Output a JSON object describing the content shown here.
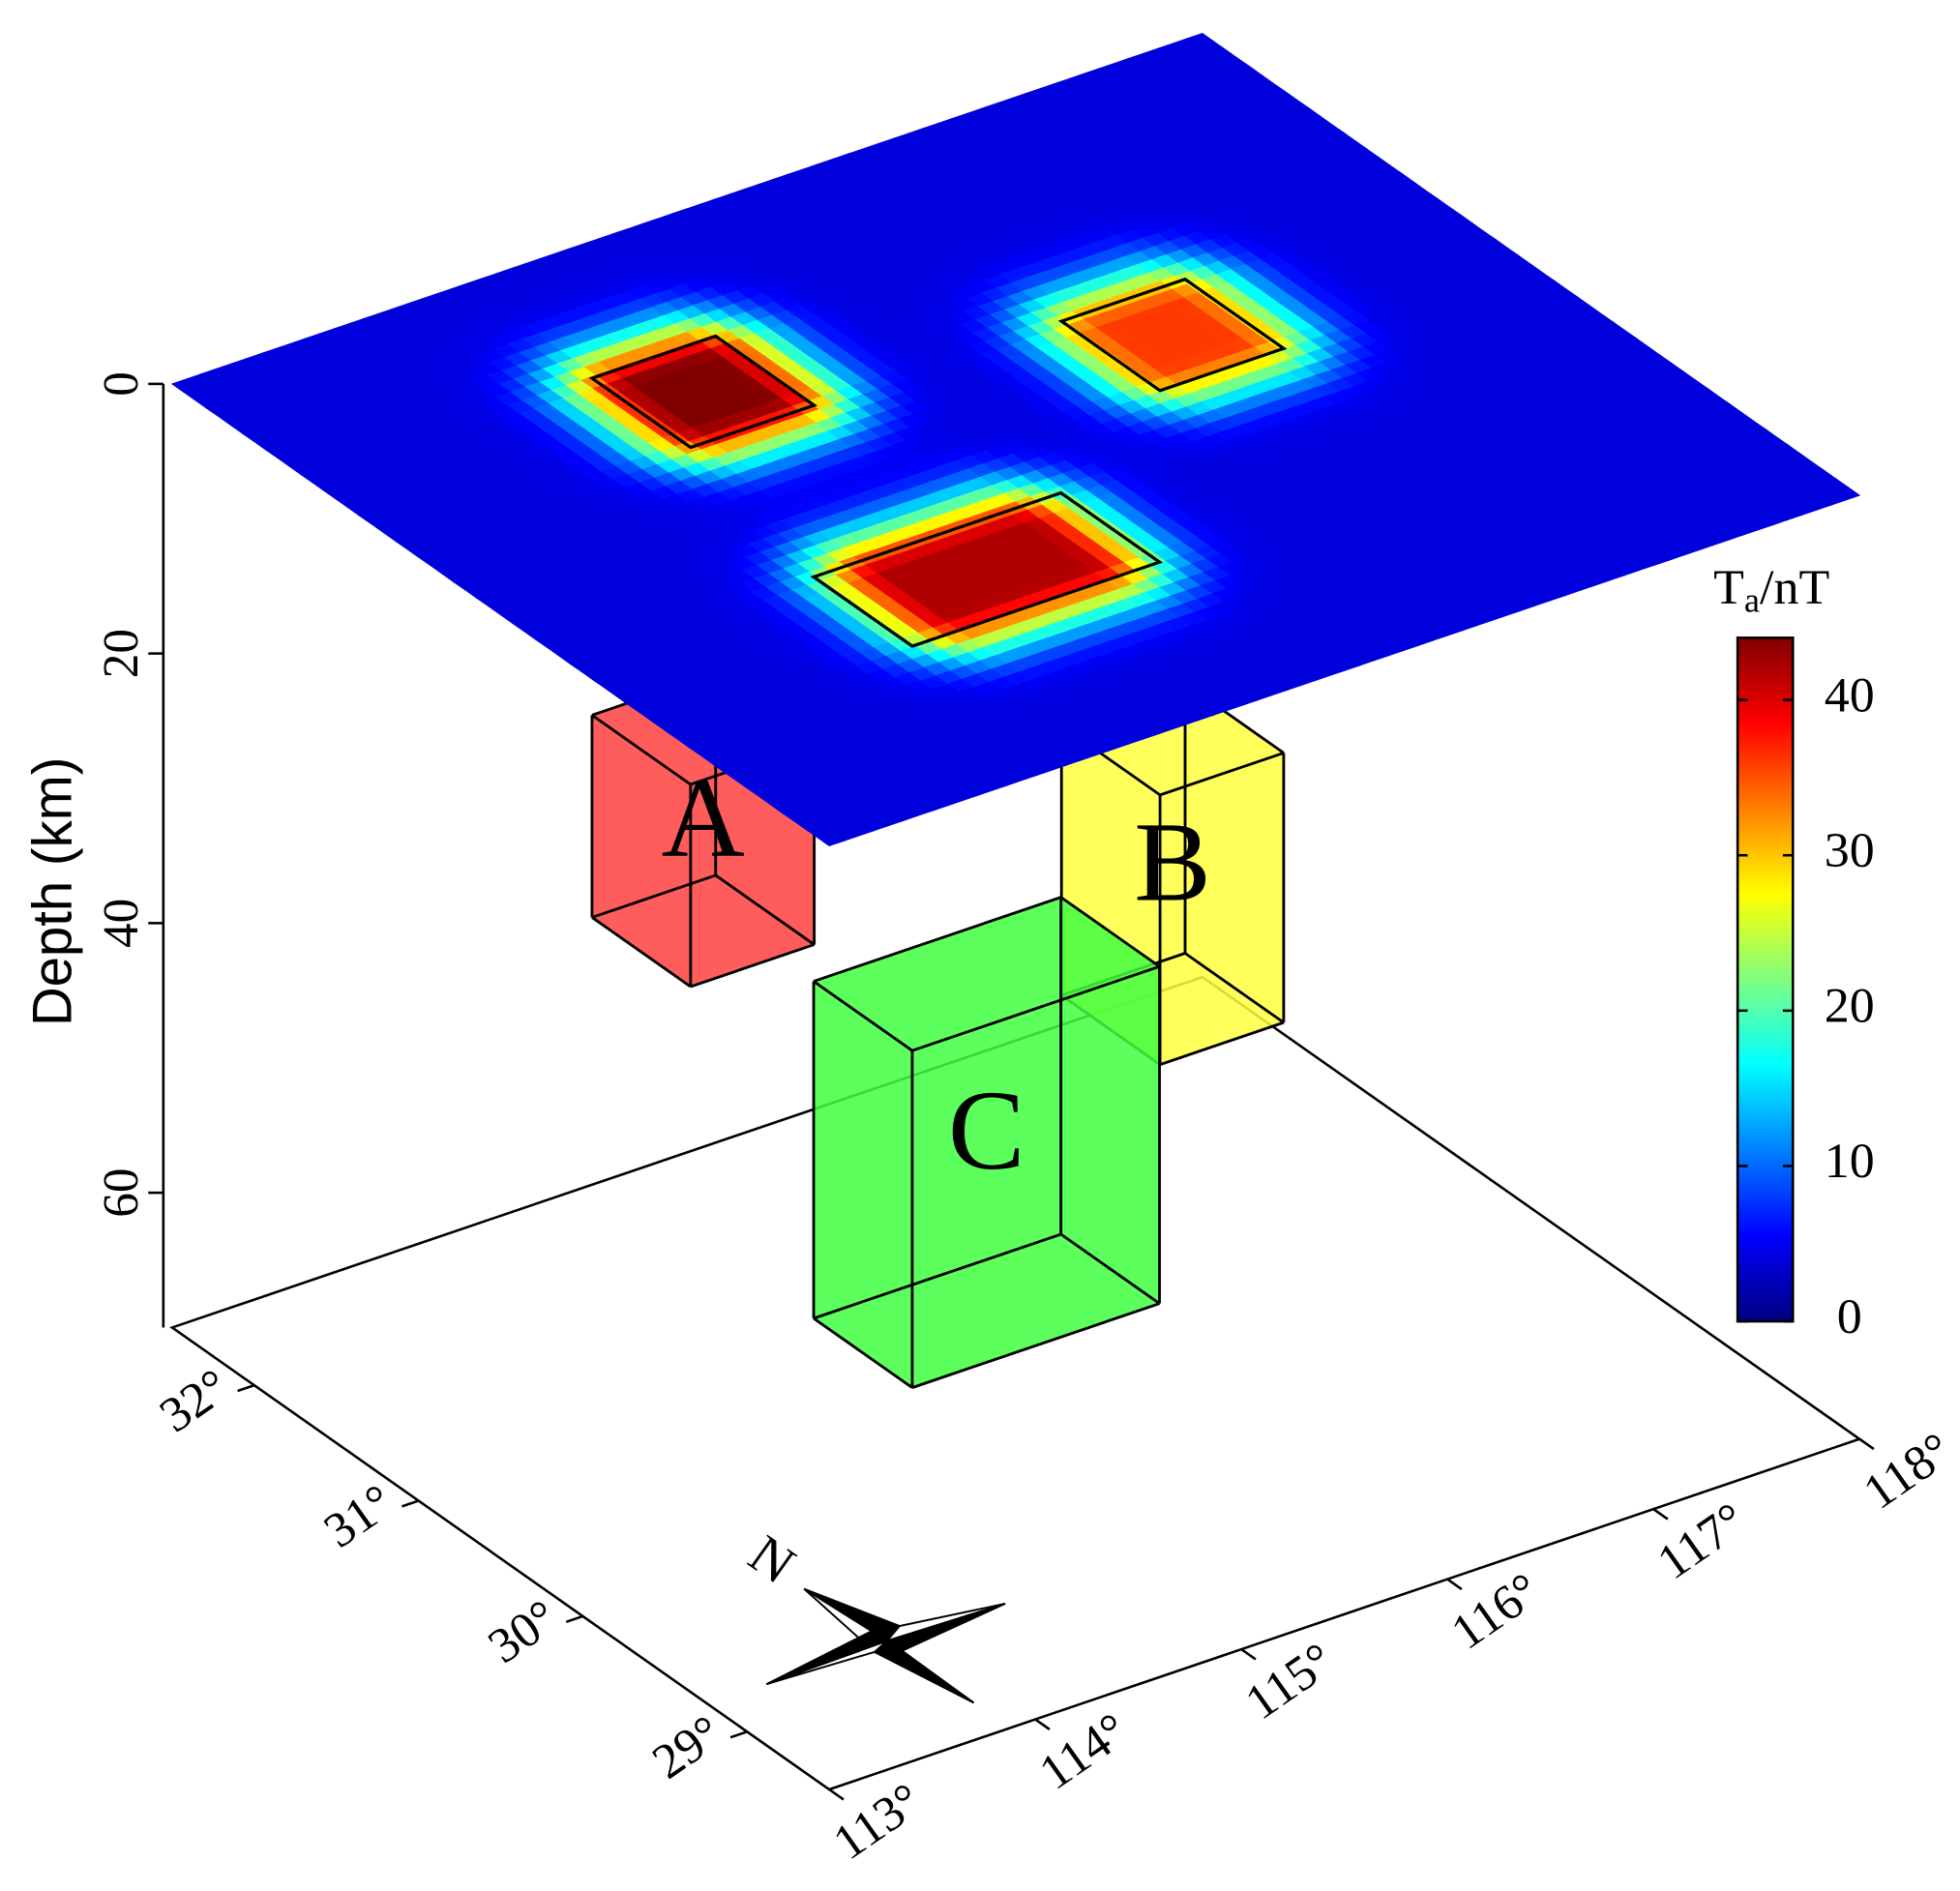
{
  "chart_data": {
    "type": "block-model",
    "zlabel": "Depth (km)",
    "zlim": [
      0,
      70
    ],
    "zticks": [
      0,
      20,
      40,
      60
    ],
    "xlim": [
      113,
      118
    ],
    "xticks": [
      {
        "value": 113,
        "label": "113°"
      },
      {
        "value": 114,
        "label": "114°"
      },
      {
        "value": 115,
        "label": "115°"
      },
      {
        "value": 116,
        "label": "116°"
      },
      {
        "value": 117,
        "label": "117°"
      },
      {
        "value": 118,
        "label": "118°"
      }
    ],
    "ylim": [
      28.5,
      32.5
    ],
    "yticks": [
      {
        "value": 29,
        "label": "29°"
      },
      {
        "value": 30,
        "label": "30°"
      },
      {
        "value": 31,
        "label": "31°"
      },
      {
        "value": 32,
        "label": "32°"
      }
    ],
    "colorbar": {
      "symbol": "T",
      "subscript": "a",
      "unit": "/nT",
      "clim": [
        0,
        44
      ],
      "ticks": [
        0,
        10,
        20,
        30,
        40
      ],
      "colormap": [
        "#000080",
        "#0000ff",
        "#0080ff",
        "#00ffff",
        "#80ff80",
        "#ffff00",
        "#ff8000",
        "#ff0000",
        "#800000"
      ]
    },
    "compass": "N",
    "bodies": [
      {
        "name": "A",
        "color": "#ff4040",
        "peak": 44,
        "lon": [
          114.4,
          115.0
        ],
        "lat": [
          31.1,
          31.7
        ],
        "depth": [
          25,
          40
        ]
      },
      {
        "name": "B",
        "color": "#ffff40",
        "peak": 36,
        "lon": [
          116.2,
          116.8
        ],
        "lat": [
          30.5,
          31.1
        ],
        "depth": [
          30,
          50
        ]
      },
      {
        "name": "C",
        "color": "#40ff40",
        "peak": 42,
        "lon": [
          114.2,
          115.4
        ],
        "lat": [
          29.5,
          30.1
        ],
        "depth": [
          30,
          55
        ]
      }
    ]
  }
}
